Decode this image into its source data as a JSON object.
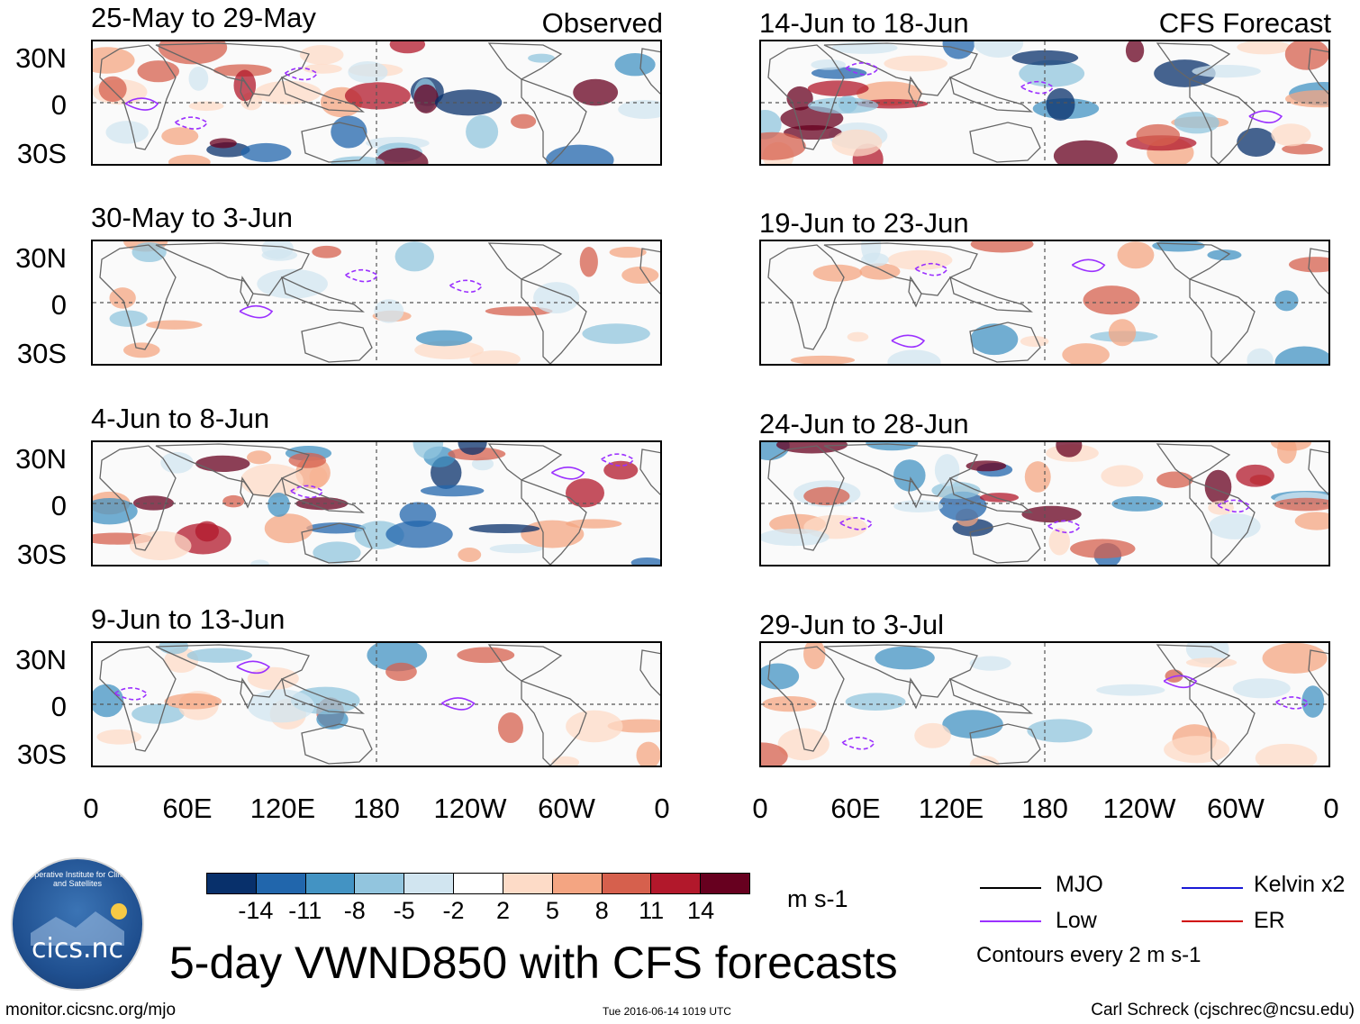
{
  "header": {
    "observed_label": "Observed",
    "forecast_label": "CFS Forecast"
  },
  "panels_left": [
    {
      "title": "25-May to 29-May"
    },
    {
      "title": "30-May to 3-Jun"
    },
    {
      "title": "4-Jun to 8-Jun"
    },
    {
      "title": "9-Jun to 13-Jun"
    }
  ],
  "panels_right": [
    {
      "title": "14-Jun to 18-Jun"
    },
    {
      "title": "19-Jun to 23-Jun"
    },
    {
      "title": "24-Jun to 28-Jun"
    },
    {
      "title": "29-Jun to 3-Jul"
    }
  ],
  "lat_labels": [
    "30N",
    "0",
    "30S"
  ],
  "lon_labels": [
    "0",
    "60E",
    "120E",
    "180",
    "120W",
    "60W",
    "0"
  ],
  "colorbar": {
    "colors": [
      "#08306b",
      "#2166ac",
      "#4393c3",
      "#92c5de",
      "#d1e5f0",
      "#ffffff",
      "#fddbc7",
      "#f4a582",
      "#d6604d",
      "#b2182b",
      "#67001f"
    ],
    "labels": [
      "-14",
      "-11",
      "-8",
      "-5",
      "-2",
      "2",
      "5",
      "8",
      "11",
      "14"
    ],
    "units": "m s-1"
  },
  "title": "5-day VWND850 with CFS forecasts",
  "legend": {
    "items": [
      {
        "label": "MJO",
        "color": "#000000"
      },
      {
        "label": "Kelvin x2",
        "color": "#1a1ad6"
      },
      {
        "label": "Low",
        "color": "#9b30ff"
      },
      {
        "label": "ER",
        "color": "#d00000"
      }
    ],
    "contour_note": "Contours every 2 m s-1"
  },
  "logo": {
    "text": "cics.nc",
    "ring_text": "Cooperative Institute for Climate and Satellites"
  },
  "footer": {
    "url": "monitor.cicsnc.org/mjo",
    "timestamp": "Tue 2016-06-14 1019 UTC",
    "credit": "Carl Schreck (cjschrec@ncsu.edu)"
  }
}
